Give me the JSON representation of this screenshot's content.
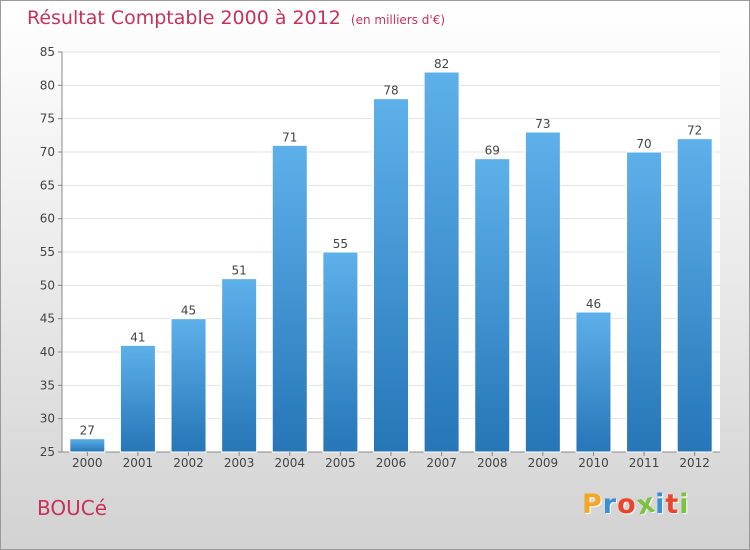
{
  "chart_data": {
    "type": "bar",
    "title": "Résultat Comptable 2000 à 2012",
    "subtitle": "(en milliers d'€)",
    "categories": [
      "2000",
      "2001",
      "2002",
      "2003",
      "2004",
      "2005",
      "2006",
      "2007",
      "2008",
      "2009",
      "2010",
      "2011",
      "2012"
    ],
    "values": [
      27,
      41,
      45,
      51,
      71,
      55,
      78,
      82,
      69,
      73,
      46,
      70,
      72
    ],
    "ylim": [
      25,
      85
    ],
    "yticks": [
      25,
      30,
      35,
      40,
      45,
      50,
      55,
      60,
      65,
      70,
      75,
      80,
      85
    ],
    "grid": true,
    "bar_color": "#3a8fd4"
  },
  "commune": "BOUCé",
  "logo": {
    "text": "Proxiti",
    "letter_colors": [
      "#f5a623",
      "#3a8fd4",
      "#e8452c",
      "#7cc242",
      "#3a8fd4",
      "#e8452c",
      "#7cc242"
    ]
  },
  "colors": {
    "title": "#c8325a",
    "accent": "#3a8fd4"
  }
}
